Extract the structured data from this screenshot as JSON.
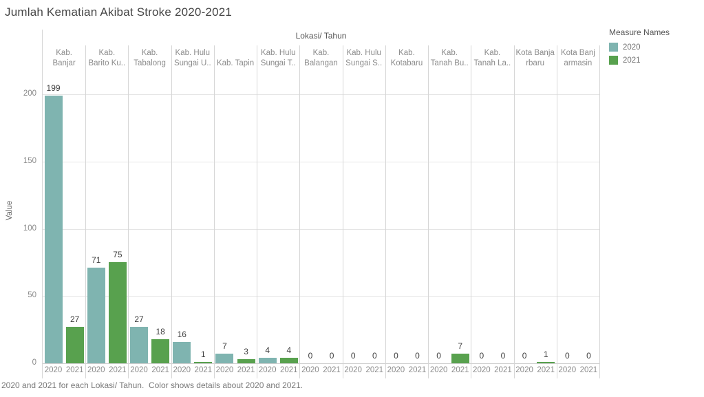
{
  "title": "Jumlah Kematian Akibat Stroke 2020-2021",
  "caption": "2020 and 2021 for each Lokasi/ Tahun.  Color shows details about 2020 and 2021.",
  "legend": {
    "title": "Measure Names",
    "items": [
      {
        "label": "2020",
        "color": "#7FB4B0"
      },
      {
        "label": "2021",
        "color": "#58A14E"
      }
    ]
  },
  "chart_data": {
    "type": "bar",
    "title": "Jumlah Kematian Akibat Stroke 2020-2021",
    "column_header": "Lokasi/ Tahun",
    "ylabel": "Value",
    "yticks": [
      0,
      50,
      100,
      150,
      200
    ],
    "ylim": [
      0,
      218
    ],
    "grid": "horizontal",
    "legend_position": "top-right",
    "categories": [
      "Kab. Banjar",
      "Kab. Barito Ku..",
      "Kab. Tabalong",
      "Kab. Hulu Sungai U..",
      "Kab. Tapin",
      "Kab. Hulu Sungai T..",
      "Kab. Balangan",
      "Kab. Hulu Sungai S..",
      "Kab. Kotabaru",
      "Kab. Tanah Bu..",
      "Kab. Tanah La..",
      "Kota Banjarbaru",
      "Kota Banjarmasin"
    ],
    "header_lines": [
      [
        "Kab.",
        "Banjar"
      ],
      [
        "Kab.",
        "Barito Ku.."
      ],
      [
        "Kab.",
        "Tabalong"
      ],
      [
        "Kab. Hulu",
        "Sungai U.."
      ],
      [
        "Kab. Tapin"
      ],
      [
        "Kab. Hulu",
        "Sungai T.."
      ],
      [
        "Kab.",
        "Balangan"
      ],
      [
        "Kab. Hulu",
        "Sungai S.."
      ],
      [
        "Kab.",
        "Kotabaru"
      ],
      [
        "Kab.",
        "Tanah Bu.."
      ],
      [
        "Kab.",
        "Tanah La.."
      ],
      [
        "Kota Banja",
        "rbaru"
      ],
      [
        "Kota Banj",
        "armasin"
      ]
    ],
    "series": [
      {
        "name": "2020",
        "color": "#7FB4B0",
        "values": [
          199,
          71,
          27,
          16,
          7,
          4,
          0,
          0,
          0,
          0,
          0,
          0,
          0
        ]
      },
      {
        "name": "2021",
        "color": "#58A14E",
        "values": [
          27,
          75,
          18,
          1,
          3,
          4,
          0,
          0,
          0,
          7,
          0,
          1,
          0
        ]
      }
    ]
  }
}
